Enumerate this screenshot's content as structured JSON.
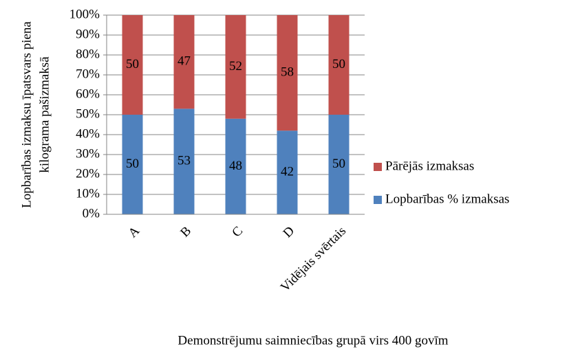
{
  "chart_data": {
    "type": "stacked_bar",
    "y_label": [
      "Lopbarības izmaksu īpatsvars piena",
      "kilograma pašizmaksā"
    ],
    "x_label": "Demonstrējumu saimniecības grupā virs 400 govīm",
    "categories": [
      "A",
      "B",
      "C",
      "D",
      "Vidējais svērtais"
    ],
    "series": [
      {
        "name": "Lopbarības % izmaksas",
        "color": "#4f81bd",
        "values": [
          50,
          53,
          48,
          42,
          50
        ]
      },
      {
        "name": "Pārējās izmaksas",
        "color": "#c0504d",
        "values": [
          50,
          47,
          52,
          58,
          50
        ]
      }
    ],
    "ylim": [
      0,
      100
    ],
    "yticks": [
      {
        "value": 0,
        "label": "0%"
      },
      {
        "value": 10,
        "label": "10%"
      },
      {
        "value": 20,
        "label": "20%"
      },
      {
        "value": 30,
        "label": "30%"
      },
      {
        "value": 40,
        "label": "40%"
      },
      {
        "value": 50,
        "label": "50%"
      },
      {
        "value": 60,
        "label": "60%"
      },
      {
        "value": 70,
        "label": "70%"
      },
      {
        "value": 80,
        "label": "80%"
      },
      {
        "value": 90,
        "label": "90%"
      },
      {
        "value": 100,
        "label": "100%"
      }
    ],
    "grid": true,
    "legend": "right"
  }
}
